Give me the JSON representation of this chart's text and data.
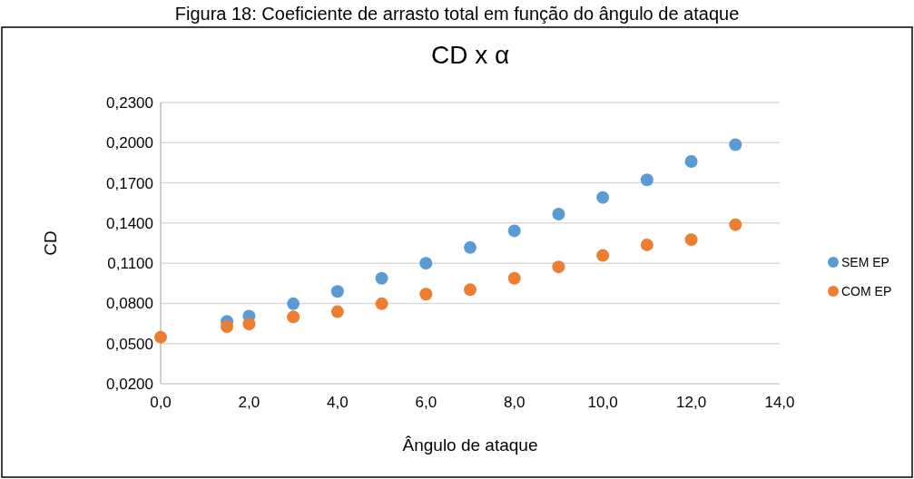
{
  "chart_data": {
    "type": "scatter",
    "title": "CD x α",
    "xlabel": "Ângulo de ataque",
    "ylabel": "CD",
    "annotations": [
      "Figura 18: Coeficiente de arrasto total em função do ângulo de ataque"
    ],
    "x": [
      0,
      1.5,
      2,
      3,
      4,
      5,
      6,
      7,
      8,
      9,
      10,
      11,
      12,
      13
    ],
    "series": [
      {
        "name": "SEM EP",
        "color": "#5b9bd5",
        "values": [
          null,
          0.0666,
          0.0705,
          0.0797,
          0.0889,
          0.0988,
          0.11,
          0.1217,
          0.1342,
          0.1467,
          0.1591,
          0.1723,
          0.186,
          0.1985
        ]
      },
      {
        "name": "COM EP",
        "color": "#ed7d31",
        "values": [
          0.0548,
          0.0627,
          0.0646,
          0.0699,
          0.0738,
          0.0797,
          0.0869,
          0.0902,
          0.0988,
          0.1073,
          0.1158,
          0.1237,
          0.1276,
          0.1388
        ]
      }
    ],
    "xlim": [
      0,
      14
    ],
    "ylim": [
      0.02,
      0.23
    ],
    "xticks": [
      {
        "value": 0,
        "label": "0,0"
      },
      {
        "value": 2,
        "label": "2,0"
      },
      {
        "value": 4,
        "label": "4,0"
      },
      {
        "value": 6,
        "label": "6,0"
      },
      {
        "value": 8,
        "label": "8,0"
      },
      {
        "value": 10,
        "label": "10,0"
      },
      {
        "value": 12,
        "label": "12,0"
      },
      {
        "value": 14,
        "label": "14,0"
      }
    ],
    "yticks": [
      {
        "value": 0.02,
        "label": "0,0200"
      },
      {
        "value": 0.05,
        "label": "0,0500"
      },
      {
        "value": 0.08,
        "label": "0,0800"
      },
      {
        "value": 0.11,
        "label": "0,1100"
      },
      {
        "value": 0.14,
        "label": "0,1400"
      },
      {
        "value": 0.17,
        "label": "0,1700"
      },
      {
        "value": 0.2,
        "label": "0,2000"
      },
      {
        "value": 0.23,
        "label": "0,2300"
      }
    ],
    "grid": "y",
    "legend": "right",
    "marker": "circle"
  }
}
